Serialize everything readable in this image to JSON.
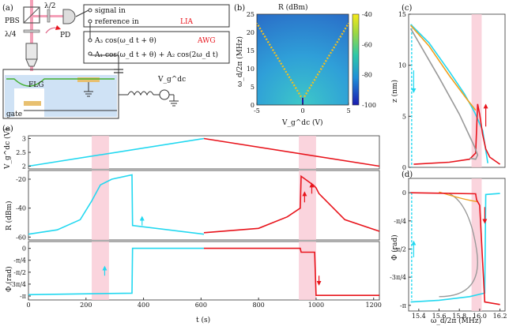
{
  "panels": {
    "a": {
      "label": "(a)",
      "optics": {
        "half_wave": "λ/2",
        "pbs": "PBS",
        "quarter_wave": "λ/4",
        "pd": "PD"
      },
      "lia_box": {
        "signal_in": "signal in",
        "reference_in": "reference in",
        "name": "LIA"
      },
      "awg_box": {
        "line1": "A₃ cos(ω_d t + θ)",
        "line2": "A₁ cos(ω_d t + θ) + A₂ cos(2ω_d t)",
        "name": "AWG"
      },
      "device": {
        "flg": "FLG",
        "gate": "gate",
        "vg_label": "V_g^dc"
      }
    },
    "b": {
      "label": "(b)",
      "title": "R (dBm)",
      "xlabel": "V_g^dc (V)",
      "ylabel": "ω_d/2π (MHz)"
    },
    "c": {
      "label": "(c)",
      "ylabel": "z (nm)"
    },
    "d": {
      "label": "(d)",
      "ylabel": "Φ (rad)",
      "xlabel": "ω_d/2π (MHz)"
    },
    "e": {
      "label": "(e)",
      "xlabel": "t (s)",
      "ylabels": [
        "V_g^dc (V)",
        "R (dBm)",
        "Φ (rad)"
      ]
    }
  },
  "colors": {
    "cyan": "#22d8f0",
    "red": "#e8141c",
    "orange": "#f0a020",
    "gray": "#999999",
    "pink": "#f9c9d4",
    "lia": "#e8141c",
    "awg": "#e8141c"
  },
  "chart_data": [
    {
      "id": "b",
      "type": "heatmap",
      "title": "R (dBm)",
      "xlabel": "V_g^dc (V)",
      "ylabel": "ω_d/2π (MHz)",
      "xlim": [
        -5,
        5
      ],
      "ylim": [
        0,
        25
      ],
      "xticks": [
        "-5",
        "0",
        "5"
      ],
      "yticks": [
        "0",
        "5",
        "10",
        "15",
        "20",
        "25"
      ],
      "colorbar": {
        "range": [
          -100,
          -40
        ],
        "ticks": [
          "-40",
          "-60",
          "-80",
          "-100"
        ]
      }
    },
    {
      "id": "c",
      "type": "line",
      "xlim": [
        15.3,
        16.25
      ],
      "ylim": [
        0,
        15
      ],
      "yticks": [
        "0",
        "5",
        "10",
        "15"
      ],
      "series": [
        {
          "name": "sweep-up",
          "color": "cyan",
          "x": [
            15.32,
            15.5,
            15.7,
            15.85,
            15.95,
            16.03,
            16.08
          ],
          "y": [
            14,
            12.2,
            9.4,
            7.2,
            5.4,
            3.6,
            0.4
          ]
        },
        {
          "name": "sweep-down",
          "color": "red",
          "x": [
            16.2,
            16.1,
            16.06,
            16.03,
            16.0,
            15.98,
            15.96,
            15.9,
            15.7,
            15.35
          ],
          "y": [
            0.3,
            1.0,
            1.8,
            3.2,
            5.2,
            6.2,
            1.4,
            0.8,
            0.5,
            0.3
          ]
        },
        {
          "name": "stable-branch",
          "color": "orange",
          "x": [
            15.32,
            15.5,
            15.7,
            15.88,
            15.96
          ],
          "y": [
            13.9,
            11.9,
            9.0,
            6.6,
            5.6
          ]
        },
        {
          "name": "unstable-branch",
          "color": "gray",
          "x": [
            15.32,
            15.6,
            15.8,
            15.95,
            15.98,
            15.96,
            15.9
          ],
          "y": [
            13.6,
            8.8,
            5.2,
            2.0,
            1.2,
            0.8,
            0.9
          ]
        }
      ]
    },
    {
      "id": "d",
      "type": "line",
      "xlim": [
        15.3,
        16.25
      ],
      "ylim": [
        -3.3,
        0.4
      ],
      "xticks": [
        "15.4",
        "15.6",
        "15.8",
        "16.0",
        "16.2"
      ],
      "yticks": [
        "0",
        "-π/4",
        "-π/2",
        "-3π/4",
        "-π"
      ],
      "series": [
        {
          "name": "sweep-up",
          "color": "cyan",
          "x": [
            15.32,
            15.6,
            15.9,
            16.05,
            16.06,
            16.2
          ],
          "y": [
            -3.05,
            -3.0,
            -2.9,
            -2.8,
            -0.05,
            -0.02
          ]
        },
        {
          "name": "sweep-down",
          "color": "red",
          "x": [
            16.2,
            16.05,
            16.0,
            15.97,
            15.96,
            15.5,
            15.32
          ],
          "y": [
            -3.12,
            -3.05,
            -0.35,
            -0.2,
            -0.03,
            -0.01,
            0.0
          ]
        }
      ]
    },
    {
      "id": "e-top",
      "type": "line",
      "xlim": [
        0,
        1220
      ],
      "ylim": [
        1.9,
        3.1
      ],
      "yticks": [
        "2",
        "2.5",
        "3"
      ],
      "series": [
        {
          "name": "ramp-up",
          "color": "cyan",
          "x": [
            0,
            610
          ],
          "y": [
            2.0,
            3.0
          ]
        },
        {
          "name": "ramp-down",
          "color": "red",
          "x": [
            610,
            1220
          ],
          "y": [
            3.0,
            2.0
          ]
        }
      ]
    },
    {
      "id": "e-mid",
      "type": "line",
      "xlim": [
        0,
        1220
      ],
      "ylim": [
        -62,
        -14
      ],
      "yticks": [
        "-20",
        "-40",
        "-60"
      ],
      "series": [
        {
          "name": "up",
          "color": "cyan",
          "x": [
            0,
            100,
            180,
            220,
            250,
            290,
            360,
            362,
            610
          ],
          "y": [
            -58,
            -55,
            -48,
            -35,
            -24,
            -20,
            -17,
            -52,
            -58
          ]
        },
        {
          "name": "down",
          "color": "red",
          "x": [
            610,
            800,
            900,
            945,
            948,
            990,
            1000,
            1010,
            1100,
            1220
          ],
          "y": [
            -57,
            -54,
            -46,
            -40,
            -18,
            -24,
            -26,
            -30,
            -48,
            -56
          ]
        }
      ]
    },
    {
      "id": "e-bot",
      "type": "line",
      "xlim": [
        0,
        1220
      ],
      "ylim": [
        -3.4,
        0.45
      ],
      "xticks": [
        "0",
        "200",
        "400",
        "600",
        "800",
        "1000",
        "1200"
      ],
      "yticks": [
        "0",
        "-π/4",
        "-π/2",
        "-3π/4",
        "-π"
      ],
      "series": [
        {
          "name": "up",
          "color": "cyan",
          "x": [
            0,
            360,
            362,
            610
          ],
          "y": [
            -3.05,
            -2.95,
            0.0,
            0.0
          ]
        },
        {
          "name": "down",
          "color": "red",
          "x": [
            610,
            945,
            948,
            995,
            1000,
            1220
          ],
          "y": [
            0.0,
            0.0,
            -0.25,
            -0.25,
            -3.1,
            -3.1
          ]
        }
      ]
    }
  ]
}
